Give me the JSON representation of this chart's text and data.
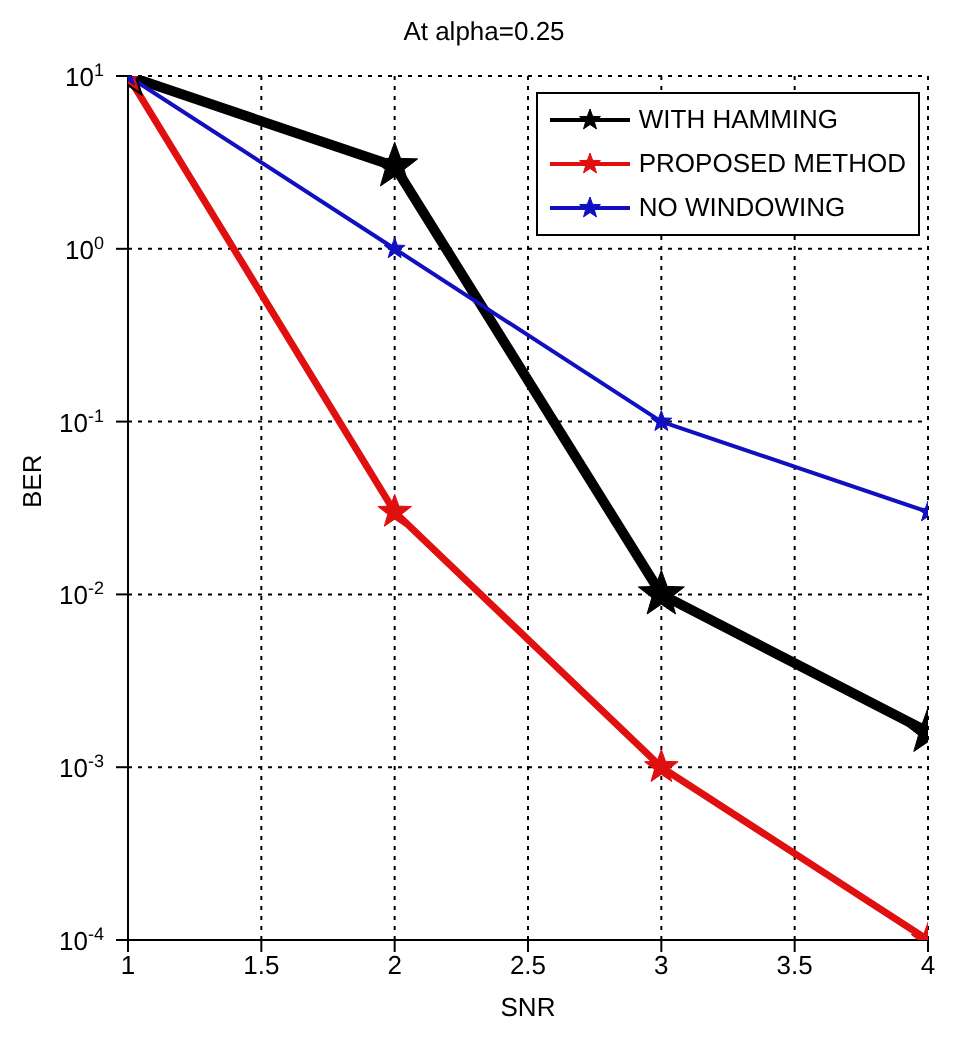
{
  "chart_data": {
    "type": "line",
    "title": "At alpha=0.25",
    "xlabel": "SNR",
    "ylabel": "BER",
    "x": [
      1,
      2,
      3,
      4
    ],
    "series": [
      {
        "name": "WITH HAMMING",
        "color": "#000000",
        "values": [
          10,
          3,
          0.01,
          0.0016
        ]
      },
      {
        "name": "PROPOSED METHOD",
        "color": "#e01010",
        "values": [
          10,
          0.03,
          0.001,
          0.0001
        ]
      },
      {
        "name": "NO WINDOWING",
        "color": "#1010c0",
        "values": [
          10,
          1,
          0.1,
          0.03
        ]
      }
    ],
    "xlim": [
      1,
      4
    ],
    "xticks": [
      1,
      1.5,
      2,
      2.5,
      3,
      3.5,
      4
    ],
    "ylim": [
      0.0001,
      10
    ],
    "yticks": [
      {
        "value": 0.0001,
        "label": "10$^{-4}$"
      },
      {
        "value": 0.001,
        "label": "10$^{-3}$"
      },
      {
        "value": 0.01,
        "label": "10$^{-2}$"
      },
      {
        "value": 0.1,
        "label": "10$^{-1}$"
      },
      {
        "value": 1,
        "label": "10$^{0}$"
      },
      {
        "value": 10,
        "label": "10$^{1}$"
      }
    ],
    "log": "y",
    "grid": true,
    "legend": "top right",
    "marker": "star",
    "line_style": "solid"
  }
}
